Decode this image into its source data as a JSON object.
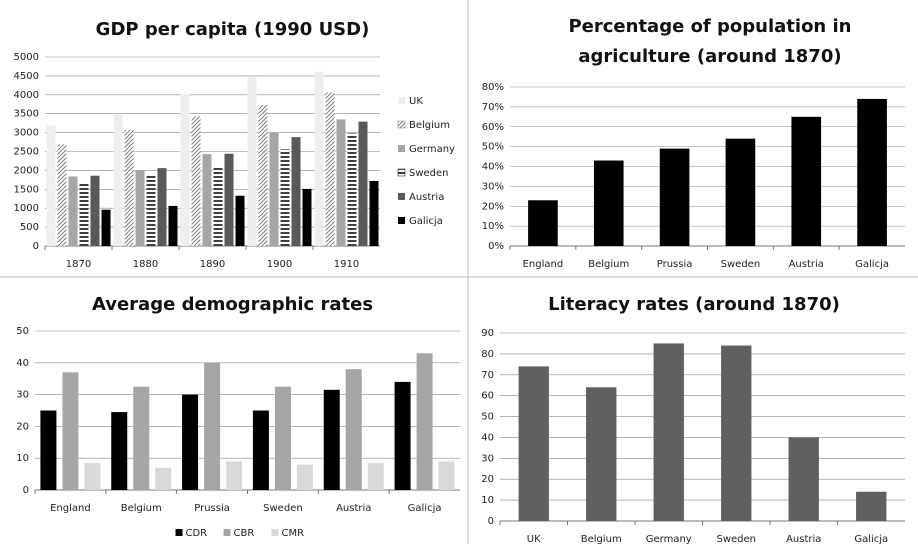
{
  "chart_data": [
    {
      "type": "bar",
      "title": "GDP per capita (1990 USD)",
      "legend": "right",
      "grid": true,
      "categories": [
        "1870",
        "1880",
        "1890",
        "1900",
        "1910"
      ],
      "ylim": [
        0,
        5000
      ],
      "yticks": [
        0,
        500,
        1000,
        1500,
        2000,
        2500,
        3000,
        3500,
        4000,
        4500,
        5000
      ],
      "series": [
        {
          "name": "UK",
          "color": "#eeeeee",
          "values": [
            3190,
            3480,
            4010,
            4490,
            4610
          ]
        },
        {
          "name": "Belgium",
          "color": "#808080",
          "pattern": "diagonal",
          "values": [
            2690,
            3070,
            3430,
            3730,
            4060
          ]
        },
        {
          "name": "Germany",
          "color": "#a6a6a6",
          "values": [
            1840,
            2000,
            2430,
            2990,
            3350
          ]
        },
        {
          "name": "Sweden",
          "color": "#000000",
          "pattern": "horizontal",
          "values": [
            1660,
            1860,
            2090,
            2560,
            2980
          ]
        },
        {
          "name": "Austria",
          "color": "#595959",
          "values": [
            1860,
            2060,
            2440,
            2880,
            3290
          ]
        },
        {
          "name": "Galicja",
          "color": "#000000",
          "values": [
            960,
            1060,
            1330,
            1510,
            1720
          ]
        }
      ]
    },
    {
      "type": "bar",
      "title": "Percentage of population in agriculture (around 1870)",
      "grid": true,
      "color": "#000000",
      "categories": [
        "England",
        "Belgium",
        "Prussia",
        "Sweden",
        "Austria",
        "Galicja"
      ],
      "values": [
        23,
        43,
        49,
        54,
        65,
        74
      ],
      "ylim": [
        0,
        80
      ],
      "yticks": [
        {
          "value": 0,
          "label": "0%"
        },
        {
          "value": 10,
          "label": "10%"
        },
        {
          "value": 20,
          "label": "20%"
        },
        {
          "value": 30,
          "label": "30%"
        },
        {
          "value": 40,
          "label": "40%"
        },
        {
          "value": 50,
          "label": "50%"
        },
        {
          "value": 60,
          "label": "60%"
        },
        {
          "value": 70,
          "label": "70%"
        },
        {
          "value": 80,
          "label": "80%"
        }
      ]
    },
    {
      "type": "bar",
      "title": "Average demographic rates",
      "legend": "bottom",
      "grid": true,
      "categories": [
        "England",
        "Belgium",
        "Prussia",
        "Sweden",
        "Austria",
        "Galicja"
      ],
      "ylim": [
        0,
        50
      ],
      "yticks": [
        0,
        10,
        20,
        30,
        40,
        50
      ],
      "series": [
        {
          "name": "CDR",
          "color": "#000000",
          "values": [
            25,
            24.5,
            30,
            25,
            31.5,
            34
          ]
        },
        {
          "name": "CBR",
          "color": "#a6a6a6",
          "values": [
            37,
            32.5,
            40,
            32.5,
            38,
            43
          ]
        },
        {
          "name": "CMR",
          "color": "#d9d9d9",
          "values": [
            8.5,
            7,
            9,
            8,
            8.5,
            9
          ]
        }
      ]
    },
    {
      "type": "bar",
      "title": "Literacy rates (around 1870)",
      "grid": true,
      "color": "#606060",
      "categories": [
        "UK",
        "Belgium",
        "Germany",
        "Sweden",
        "Austria",
        "Galicja"
      ],
      "values": [
        74,
        64,
        85,
        84,
        40,
        14
      ],
      "ylim": [
        0,
        90
      ],
      "yticks": [
        0,
        10,
        20,
        30,
        40,
        50,
        60,
        70,
        80,
        90
      ]
    }
  ]
}
